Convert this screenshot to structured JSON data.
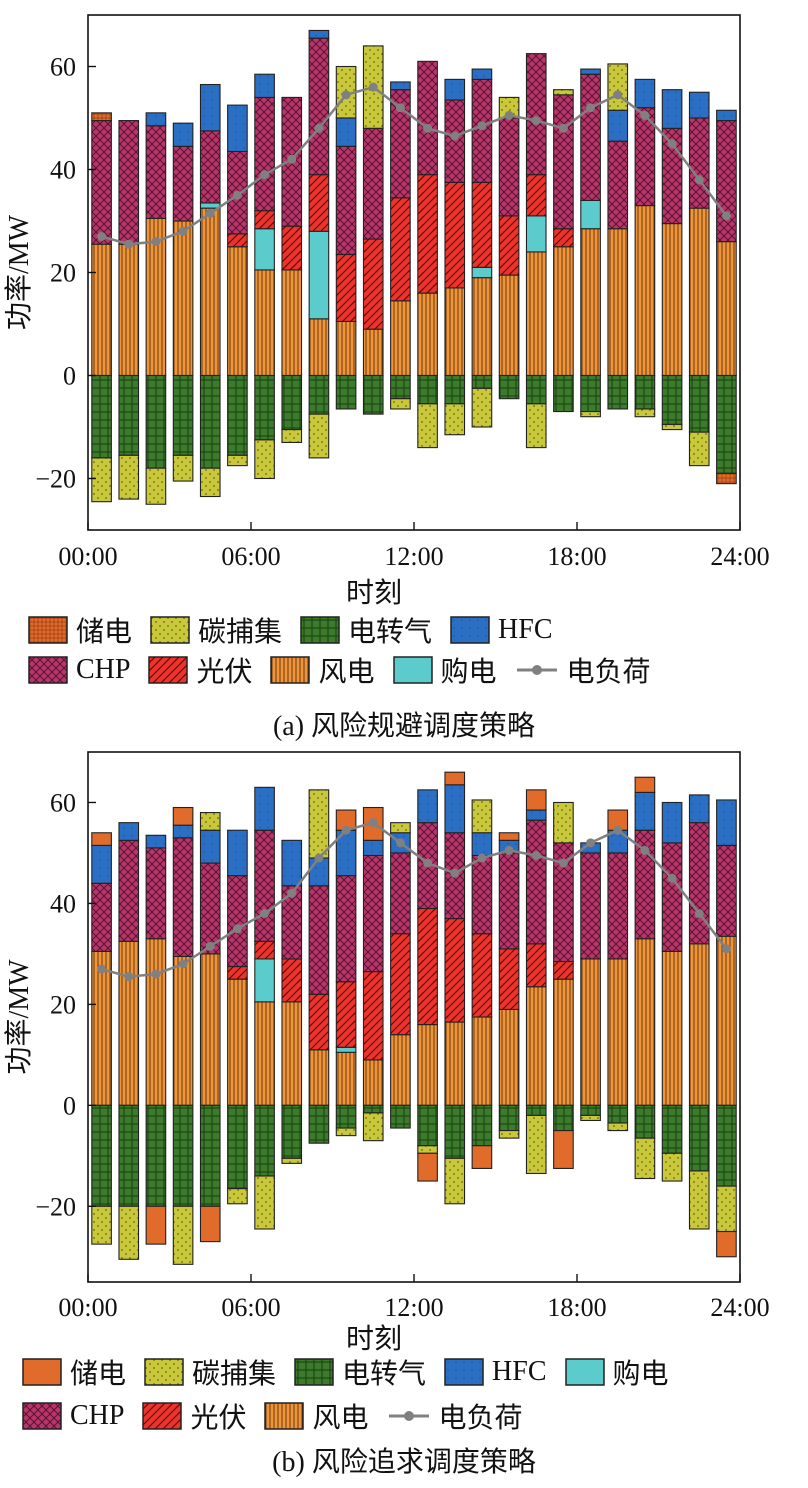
{
  "chart_data": [
    {
      "type": "bar",
      "subtype": "stacked",
      "caption": "(a) 风险规避调度策略",
      "xlabel": "时刻",
      "ylabel": "功率/MW",
      "ylim": [
        -30,
        70
      ],
      "xticks": [
        "00:00",
        "06:00",
        "12:00",
        "18:00",
        "24:00"
      ],
      "yticks": [
        -20,
        0,
        20,
        40,
        60
      ],
      "legend": [
        "储电",
        "碳捕集",
        "电转气",
        "HFC",
        "CHP",
        "光伏",
        "风电",
        "购电",
        "电负荷"
      ],
      "series_colors": {
        "storage": "#e06b2a",
        "ccs": "#c8c83a",
        "p2g": "#3c7a2c",
        "hfc": "#2a6fc4",
        "chp": "#b8376b",
        "pv": "#f0332a",
        "wind": "#f0943a",
        "buy": "#5ccbcb",
        "load": "#808080"
      },
      "hours": [
        1,
        2,
        3,
        4,
        5,
        6,
        7,
        8,
        9,
        10,
        11,
        12,
        13,
        14,
        15,
        16,
        17,
        18,
        19,
        20,
        21,
        22,
        23,
        24
      ],
      "positive": {
        "wind": [
          25.5,
          25.5,
          30.5,
          30,
          32.5,
          25,
          20.5,
          20.5,
          11,
          10.5,
          9,
          14.5,
          16,
          17,
          19,
          19.5,
          24,
          25,
          28.5,
          28.5,
          33,
          29.5,
          32.5,
          26
        ],
        "buy": [
          0,
          0,
          0,
          0,
          1,
          0,
          8,
          0,
          17,
          0,
          0,
          0,
          0,
          0,
          2,
          0,
          7,
          0,
          5.5,
          0,
          0,
          0,
          0,
          0
        ],
        "pv": [
          0,
          0,
          0,
          0,
          0,
          2.5,
          3.5,
          8.5,
          11,
          13,
          17.5,
          20,
          23,
          20.5,
          16.5,
          11.5,
          8,
          3.5,
          0,
          0,
          0,
          0,
          0,
          0
        ],
        "chp": [
          24,
          24,
          18,
          14.5,
          14,
          16,
          22,
          25,
          26.5,
          21,
          21.5,
          21,
          22,
          16,
          20,
          19,
          23.5,
          26,
          24.5,
          17,
          19,
          18.5,
          17.5,
          23.5
        ],
        "hfc": [
          0,
          0,
          2.5,
          4.5,
          9,
          9,
          4.5,
          0,
          1.5,
          5.5,
          0,
          1.5,
          0,
          4,
          2,
          0,
          0,
          0,
          1,
          6,
          5.5,
          7.5,
          5,
          2
        ],
        "ccs": [
          0,
          0,
          0,
          0,
          0,
          0,
          0,
          0,
          0,
          10,
          16,
          0,
          0,
          0,
          0,
          4,
          0,
          1,
          0,
          9,
          0,
          0,
          0,
          0
        ],
        "storage": [
          1.5,
          0,
          0,
          0,
          0,
          0,
          0,
          0,
          0,
          0,
          0,
          0,
          0,
          0,
          0,
          0,
          0,
          0,
          0,
          0,
          0,
          0,
          0,
          0
        ]
      },
      "negative": {
        "p2g": [
          -16,
          -15.5,
          -18,
          -15.5,
          -18,
          -15.5,
          -12.5,
          -10.5,
          -7.5,
          -6.5,
          -7.5,
          -4.5,
          -5.5,
          -5.5,
          -2.5,
          -4.5,
          -5.5,
          -7,
          -7,
          -6.5,
          -6.5,
          -9.5,
          -11,
          -19
        ],
        "ccs": [
          -8.5,
          -8.5,
          -7,
          -5,
          -5.5,
          -2,
          -7.5,
          -2.5,
          -8.5,
          0,
          0,
          -2,
          -8.5,
          -6,
          -7.5,
          0,
          -8.5,
          0,
          -1,
          0,
          -1.5,
          -1,
          -6.5,
          0
        ],
        "storage": [
          0,
          0,
          0,
          0,
          0,
          0,
          0,
          0,
          0,
          0,
          0,
          0,
          0,
          0,
          0,
          0,
          0,
          0,
          0,
          0,
          0,
          0,
          0,
          -2
        ]
      },
      "load": [
        27,
        25.5,
        26,
        28,
        31.5,
        35,
        39,
        42,
        48,
        54.5,
        56,
        52,
        48,
        46.5,
        48.5,
        50.5,
        49.5,
        48,
        52,
        54.5,
        50.5,
        45,
        38,
        31
      ]
    },
    {
      "type": "bar",
      "subtype": "stacked",
      "caption": "(b) 风险追求调度策略",
      "xlabel": "时刻",
      "ylabel": "功率/MW",
      "ylim": [
        -35,
        70
      ],
      "xticks": [
        "00:00",
        "06:00",
        "12:00",
        "18:00",
        "24:00"
      ],
      "yticks": [
        -20,
        0,
        20,
        40,
        60
      ],
      "legend": [
        "储电",
        "碳捕集",
        "电转气",
        "HFC",
        "购电",
        "CHP",
        "光伏",
        "风电",
        "电负荷"
      ],
      "hours": [
        1,
        2,
        3,
        4,
        5,
        6,
        7,
        8,
        9,
        10,
        11,
        12,
        13,
        14,
        15,
        16,
        17,
        18,
        19,
        20,
        21,
        22,
        23,
        24
      ],
      "positive": {
        "wind": [
          30.5,
          32.5,
          33,
          29.5,
          30,
          25,
          20.5,
          20.5,
          11,
          10.5,
          9,
          14,
          16,
          16.5,
          17.5,
          19,
          23.5,
          25,
          29,
          29,
          33,
          30.5,
          32,
          33.5
        ],
        "buy": [
          0,
          0,
          0,
          0,
          0,
          0,
          8.5,
          0,
          0,
          1,
          0,
          0,
          0,
          0,
          0,
          0,
          0,
          0,
          0,
          0,
          0,
          0,
          0,
          0
        ],
        "pv": [
          0,
          0,
          0,
          0,
          0,
          2.5,
          3.5,
          8.5,
          11,
          13,
          17.5,
          20,
          23,
          20.5,
          16.5,
          12,
          8.5,
          3.5,
          0,
          0,
          0,
          0,
          0,
          0
        ],
        "chp": [
          13.5,
          20,
          18,
          23.5,
          18,
          18,
          22,
          14.5,
          21.5,
          21,
          23,
          16,
          17,
          17,
          15.5,
          19,
          24.5,
          23.5,
          21,
          21,
          21.5,
          21.5,
          24,
          18
        ],
        "hfc": [
          7.5,
          3.5,
          2.5,
          2.5,
          6.5,
          9,
          8.5,
          9,
          5.5,
          9,
          3,
          4,
          6.5,
          9.5,
          4.5,
          2.5,
          2,
          0,
          2,
          4.5,
          7.5,
          8,
          5.5,
          9
        ],
        "ccs": [
          0,
          0,
          0,
          0,
          3.5,
          0,
          0,
          0,
          13.5,
          0,
          0,
          2,
          0,
          0,
          6.5,
          0,
          0,
          8,
          0,
          0,
          0,
          0,
          0,
          0
        ],
        "storage": [
          2.5,
          0,
          0,
          3.5,
          0,
          0,
          0,
          0,
          0,
          4,
          6.5,
          0,
          0,
          2.5,
          0,
          1.5,
          4,
          0,
          0,
          4,
          3,
          0,
          0,
          0
        ]
      },
      "negative": {
        "p2g": [
          -20,
          -20,
          -20,
          -20,
          -20,
          -16.5,
          -14,
          -10.5,
          -7.5,
          -4.5,
          -1.5,
          -4.5,
          -8,
          -10.5,
          -8,
          -5,
          -2,
          -5,
          -2,
          -3.5,
          -6.5,
          -9.5,
          -13,
          -16
        ],
        "ccs": [
          -7.5,
          -10.5,
          0,
          -11.5,
          0,
          -3,
          -10.5,
          -1,
          0,
          -1.5,
          -5.5,
          0,
          -1.5,
          -9,
          0,
          -1.5,
          -11.5,
          0,
          -1,
          -1.5,
          -8,
          -5.5,
          -11.5,
          -9
        ],
        "storage": [
          0,
          0,
          -7.5,
          0,
          -7,
          0,
          0,
          0,
          0,
          0,
          0,
          0,
          -5.5,
          0,
          -4.5,
          0,
          0,
          -7.5,
          0,
          0,
          0,
          0,
          0,
          -5
        ]
      },
      "load": [
        27,
        25.5,
        26,
        28,
        31.5,
        35,
        38,
        42,
        49,
        54.5,
        56,
        52,
        48,
        46,
        49,
        50.5,
        49.5,
        48,
        52,
        54.5,
        50.5,
        45,
        38,
        31
      ]
    }
  ]
}
